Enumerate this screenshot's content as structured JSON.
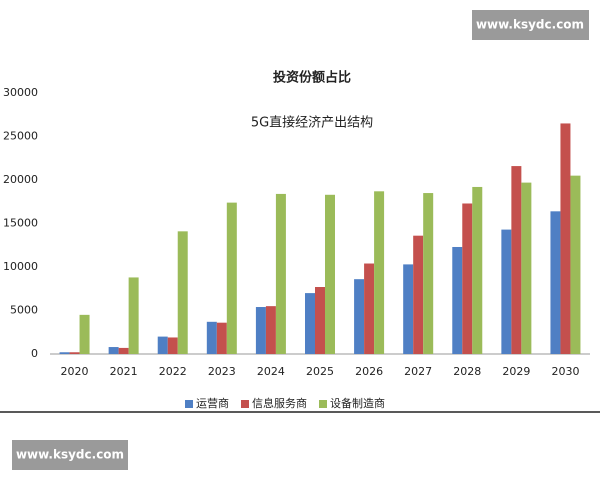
{
  "watermarks": [
    "www.ksydc.com",
    "www.ksydc.com"
  ],
  "chart_data": {
    "type": "bar",
    "title": "投资份额占比",
    "subtitle": "5G直接经济产出结构",
    "categories": [
      "2020",
      "2021",
      "2022",
      "2023",
      "2024",
      "2025",
      "2026",
      "2027",
      "2028",
      "2029",
      "2030"
    ],
    "series": [
      {
        "name": "运营商",
        "color": "#4f7fc4",
        "values": [
          200,
          800,
          2000,
          3700,
          5400,
          7000,
          8600,
          10300,
          12300,
          14300,
          16400
        ]
      },
      {
        "name": "信息服务商",
        "color": "#c4504d",
        "values": [
          200,
          700,
          1900,
          3600,
          5500,
          7700,
          10400,
          13600,
          17300,
          21600,
          26500
        ]
      },
      {
        "name": "设备制造商",
        "color": "#9bbb59",
        "values": [
          4500,
          8800,
          14100,
          17400,
          18400,
          18300,
          18700,
          18500,
          19200,
          19700,
          20500
        ]
      }
    ],
    "ylim": [
      0,
      30000
    ],
    "yticks": [
      0,
      5000,
      10000,
      15000,
      20000,
      25000,
      30000
    ],
    "grid": false,
    "legend": "bottom"
  }
}
